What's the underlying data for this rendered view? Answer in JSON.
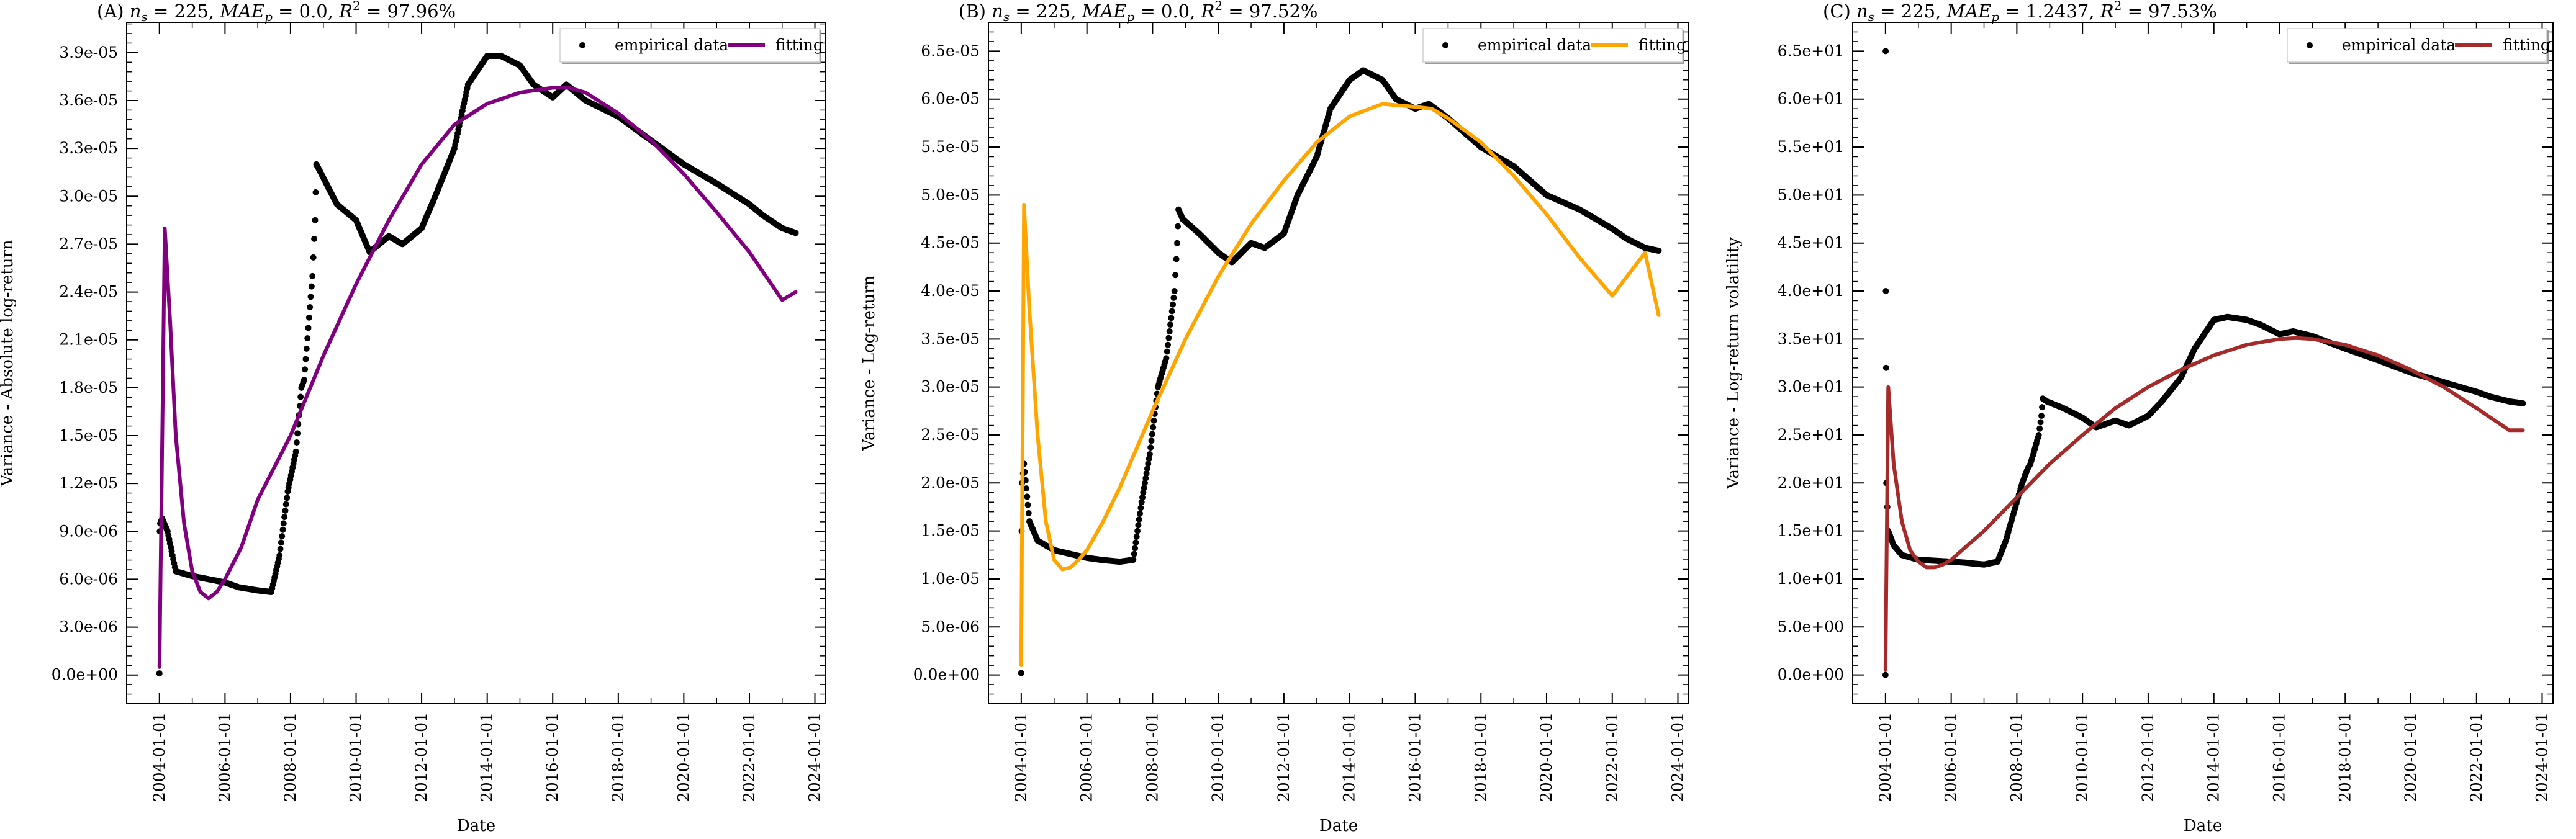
{
  "chart_data": [
    {
      "type": "scatter",
      "panel_id": "A",
      "title": "(A) n_s = 225, MAE_p = 0.0, R^2 = 97.96%",
      "title_parts": {
        "prefix": "(A)",
        "ns": "225",
        "mae": "0.0",
        "r2": "97.96%"
      },
      "xlabel": "Date",
      "ylabel": "Variance - Absolute log-return",
      "x_ticks": [
        "2004-01-01",
        "2006-01-01",
        "2008-01-01",
        "2010-01-01",
        "2012-01-01",
        "2014-01-01",
        "2016-01-01",
        "2018-01-01",
        "2020-01-01",
        "2022-01-01",
        "2024-01-01"
      ],
      "xlim": [
        "2003-01-01",
        "2024-05-01"
      ],
      "y_ticks": [
        "0.0e+00",
        "3.0e-06",
        "6.0e-06",
        "9.0e-06",
        "1.2e-05",
        "1.5e-05",
        "1.8e-05",
        "2.1e-05",
        "2.4e-05",
        "2.7e-05",
        "3.0e-05",
        "3.3e-05",
        "3.6e-05",
        "3.9e-05"
      ],
      "ylim": [
        -1.8e-06,
        4.09e-05
      ],
      "legend": {
        "placement": "top-right",
        "entries": [
          "empirical data",
          "fitting"
        ]
      },
      "fit_color": "#800080",
      "empirical_color": "#000000",
      "series": [
        {
          "name": "empirical data",
          "kind": "scatter",
          "x": [
            "2004-01-01",
            "2004-01-05",
            "2004-01-10",
            "2004-02-01",
            "2004-04-01",
            "2004-07-01",
            "2005-01-01",
            "2006-01-01",
            "2006-06-01",
            "2007-01-01",
            "2007-06-01",
            "2007-09-01",
            "2007-12-01",
            "2008-03-01",
            "2008-05-01",
            "2008-06-01",
            "2008-09-01",
            "2008-10-01",
            "2008-10-15",
            "2008-12-01",
            "2009-06-01",
            "2010-01-01",
            "2010-06-01",
            "2011-01-01",
            "2011-06-01",
            "2012-01-01",
            "2012-06-01",
            "2013-01-01",
            "2013-06-01",
            "2014-01-01",
            "2014-06-01",
            "2015-01-01",
            "2015-06-01",
            "2016-01-01",
            "2016-06-01",
            "2017-01-01",
            "2018-01-01",
            "2019-01-01",
            "2020-01-01",
            "2021-01-01",
            "2022-01-01",
            "2022-06-01",
            "2023-01-01",
            "2023-06-01"
          ],
          "y": [
            1e-07,
            9e-06,
            9.5e-06,
            9.8e-06,
            9e-06,
            6.5e-06,
            6.2e-06,
            5.8e-06,
            5.5e-06,
            5.3e-06,
            5.2e-06,
            7.5e-06,
            1.15e-05,
            1.4e-05,
            1.8e-05,
            1.85e-05,
            2.5e-05,
            2.85e-05,
            3.2e-05,
            3.15e-05,
            2.95e-05,
            2.85e-05,
            2.65e-05,
            2.75e-05,
            2.7e-05,
            2.8e-05,
            3e-05,
            3.3e-05,
            3.7e-05,
            3.88e-05,
            3.88e-05,
            3.82e-05,
            3.7e-05,
            3.62e-05,
            3.7e-05,
            3.6e-05,
            3.5e-05,
            3.35e-05,
            3.2e-05,
            3.08e-05,
            2.95e-05,
            2.88e-05,
            2.8e-05,
            2.77e-05
          ]
        },
        {
          "name": "fitting",
          "kind": "line",
          "x": [
            "2004-01-01",
            "2004-03-01",
            "2004-05-01",
            "2004-07-01",
            "2004-10-01",
            "2005-01-01",
            "2005-04-01",
            "2005-07-01",
            "2005-10-01",
            "2006-01-01",
            "2006-07-01",
            "2007-01-01",
            "2008-01-01",
            "2009-01-01",
            "2010-01-01",
            "2011-01-01",
            "2012-01-01",
            "2013-01-01",
            "2014-01-01",
            "2015-01-01",
            "2016-01-01",
            "2016-07-01",
            "2017-01-01",
            "2018-01-01",
            "2019-01-01",
            "2020-01-01",
            "2021-01-01",
            "2022-01-01",
            "2023-01-01",
            "2023-06-01"
          ],
          "y": [
            5e-07,
            2.8e-05,
            2.2e-05,
            1.5e-05,
            9.5e-06,
            6.5e-06,
            5.2e-06,
            4.8e-06,
            5.2e-06,
            6e-06,
            8e-06,
            1.1e-05,
            1.5e-05,
            2e-05,
            2.45e-05,
            2.85e-05,
            3.2e-05,
            3.45e-05,
            3.58e-05,
            3.65e-05,
            3.68e-05,
            3.68e-05,
            3.65e-05,
            3.52e-05,
            3.35e-05,
            3.14e-05,
            2.9e-05,
            2.65e-05,
            2.35e-05,
            2.4e-05
          ]
        }
      ]
    },
    {
      "type": "scatter",
      "panel_id": "B",
      "title": "(B) n_s = 225, MAE_p = 0.0, R^2 = 97.52%",
      "title_parts": {
        "prefix": "(B)",
        "ns": "225",
        "mae": "0.0",
        "r2": "97.52%"
      },
      "xlabel": "Date",
      "ylabel": "Variance - Log-return",
      "x_ticks": [
        "2004-01-01",
        "2006-01-01",
        "2008-01-01",
        "2010-01-01",
        "2012-01-01",
        "2014-01-01",
        "2016-01-01",
        "2018-01-01",
        "2020-01-01",
        "2022-01-01",
        "2024-01-01"
      ],
      "xlim": [
        "2003-01-01",
        "2024-05-01"
      ],
      "y_ticks": [
        "0.0e+00",
        "5.0e-06",
        "1.0e-05",
        "1.5e-05",
        "2.0e-05",
        "2.5e-05",
        "3.0e-05",
        "3.5e-05",
        "4.0e-05",
        "4.5e-05",
        "5.0e-05",
        "5.5e-05",
        "6.0e-05",
        "6.5e-05"
      ],
      "ylim": [
        -3e-06,
        6.8e-05
      ],
      "legend": {
        "placement": "top-right",
        "entries": [
          "empirical data",
          "fitting"
        ]
      },
      "fit_color": "#FFA500",
      "empirical_color": "#000000",
      "series": [
        {
          "name": "empirical data",
          "kind": "scatter",
          "x": [
            "2004-01-01",
            "2004-01-05",
            "2004-01-10",
            "2004-02-01",
            "2004-04-01",
            "2004-07-01",
            "2005-01-01",
            "2006-01-01",
            "2006-06-01",
            "2007-01-01",
            "2007-06-01",
            "2007-09-01",
            "2007-12-01",
            "2008-03-01",
            "2008-05-01",
            "2008-06-01",
            "2008-09-01",
            "2008-10-01",
            "2008-10-15",
            "2008-12-01",
            "2009-06-01",
            "2010-01-01",
            "2010-06-01",
            "2011-01-01",
            "2011-06-01",
            "2012-01-01",
            "2012-06-01",
            "2013-01-01",
            "2013-06-01",
            "2014-01-01",
            "2014-06-01",
            "2015-01-01",
            "2015-06-01",
            "2016-01-01",
            "2016-06-01",
            "2017-01-01",
            "2018-01-01",
            "2019-01-01",
            "2020-01-01",
            "2021-01-01",
            "2022-01-01",
            "2022-06-01",
            "2023-01-01",
            "2023-06-01"
          ],
          "y": [
            2e-07,
            1.5e-05,
            2e-05,
            2.2e-05,
            1.6e-05,
            1.4e-05,
            1.3e-05,
            1.22e-05,
            1.2e-05,
            1.18e-05,
            1.2e-05,
            1.8e-05,
            2.3e-05,
            3e-05,
            3.2e-05,
            3.3e-05,
            4e-05,
            4.5e-05,
            4.85e-05,
            4.75e-05,
            4.6e-05,
            4.4e-05,
            4.3e-05,
            4.5e-05,
            4.45e-05,
            4.6e-05,
            5e-05,
            5.4e-05,
            5.9e-05,
            6.2e-05,
            6.3e-05,
            6.2e-05,
            6e-05,
            5.9e-05,
            5.95e-05,
            5.8e-05,
            5.5e-05,
            5.3e-05,
            5e-05,
            4.85e-05,
            4.65e-05,
            4.55e-05,
            4.45e-05,
            4.42e-05
          ]
        },
        {
          "name": "fitting",
          "kind": "line",
          "x": [
            "2004-01-01",
            "2004-02-01",
            "2004-04-01",
            "2004-07-01",
            "2004-10-01",
            "2005-01-01",
            "2005-04-01",
            "2005-07-01",
            "2005-10-01",
            "2006-01-01",
            "2006-07-01",
            "2007-01-01",
            "2008-01-01",
            "2009-01-01",
            "2010-01-01",
            "2011-01-01",
            "2012-01-01",
            "2013-01-01",
            "2014-01-01",
            "2015-01-01",
            "2016-01-01",
            "2016-07-01",
            "2017-01-01",
            "2018-01-01",
            "2019-01-01",
            "2020-01-01",
            "2021-01-01",
            "2022-01-01",
            "2023-01-01",
            "2023-06-01"
          ],
          "y": [
            1e-06,
            4.9e-05,
            3.8e-05,
            2.5e-05,
            1.6e-05,
            1.2e-05,
            1.1e-05,
            1.12e-05,
            1.2e-05,
            1.3e-05,
            1.6e-05,
            1.95e-05,
            2.75e-05,
            3.5e-05,
            4.15e-05,
            4.7e-05,
            5.15e-05,
            5.55e-05,
            5.82e-05,
            5.95e-05,
            5.92e-05,
            5.9e-05,
            5.8e-05,
            5.55e-05,
            5.2e-05,
            4.8e-05,
            4.35e-05,
            3.95e-05,
            4.4e-05,
            3.75e-05
          ]
        }
      ]
    },
    {
      "type": "scatter",
      "panel_id": "C",
      "title": "(C) n_s = 225, MAE_p = 1.2437, R^2 = 97.53%",
      "title_parts": {
        "prefix": "(C)",
        "ns": "225",
        "mae": "1.2437",
        "r2": "97.53%"
      },
      "xlabel": "Date",
      "ylabel": "Variance - Log-return volatility",
      "x_ticks": [
        "2004-01-01",
        "2006-01-01",
        "2008-01-01",
        "2010-01-01",
        "2012-01-01",
        "2014-01-01",
        "2016-01-01",
        "2018-01-01",
        "2020-01-01",
        "2022-01-01",
        "2024-01-01"
      ],
      "xlim": [
        "2003-01-01",
        "2024-05-01"
      ],
      "y_ticks": [
        "0.0e+00",
        "5.0e+00",
        "1.0e+01",
        "1.5e+01",
        "2.0e+01",
        "2.5e+01",
        "3.0e+01",
        "3.5e+01",
        "4.0e+01",
        "4.5e+01",
        "5.0e+01",
        "5.5e+01",
        "6.0e+01",
        "6.5e+01"
      ],
      "ylim": [
        -3.0,
        68.0
      ],
      "legend": {
        "placement": "top-right",
        "entries": [
          "empirical data",
          "fitting"
        ]
      },
      "fit_color": "#A52A2A",
      "empirical_color": "#000000",
      "series": [
        {
          "name": "empirical data",
          "kind": "scatter",
          "x": [
            "2004-01-01",
            "2004-01-03",
            "2004-01-05",
            "2004-01-08",
            "2004-01-10",
            "2004-02-01",
            "2004-04-01",
            "2004-07-01",
            "2005-01-01",
            "2006-01-01",
            "2006-06-01",
            "2007-01-01",
            "2007-06-01",
            "2007-09-01",
            "2007-12-01",
            "2008-03-01",
            "2008-05-01",
            "2008-06-01",
            "2008-09-01",
            "2008-10-01",
            "2008-10-15",
            "2008-12-01",
            "2009-06-01",
            "2010-01-01",
            "2010-06-01",
            "2011-01-01",
            "2011-06-01",
            "2012-01-01",
            "2012-06-01",
            "2013-01-01",
            "2013-06-01",
            "2014-01-01",
            "2014-06-01",
            "2015-01-01",
            "2015-06-01",
            "2016-01-01",
            "2016-06-01",
            "2017-01-01",
            "2018-01-01",
            "2019-01-01",
            "2020-01-01",
            "2021-01-01",
            "2022-01-01",
            "2022-06-01",
            "2023-01-01",
            "2023-06-01"
          ],
          "y": [
            0.0,
            65.0,
            40.0,
            32.0,
            20.0,
            15.0,
            13.5,
            12.5,
            12.0,
            11.8,
            11.7,
            11.5,
            11.8,
            14.0,
            17.0,
            20.0,
            21.5,
            22.0,
            25.0,
            27.0,
            28.8,
            28.5,
            27.8,
            26.8,
            25.8,
            26.5,
            26.0,
            27.0,
            28.5,
            31.0,
            34.0,
            37.0,
            37.3,
            37.0,
            36.5,
            35.5,
            35.8,
            35.3,
            34.0,
            32.8,
            31.5,
            30.5,
            29.5,
            29.0,
            28.5,
            28.3
          ]
        },
        {
          "name": "fitting",
          "kind": "line",
          "x": [
            "2004-01-01",
            "2004-02-01",
            "2004-04-01",
            "2004-07-01",
            "2004-10-01",
            "2005-01-01",
            "2005-04-01",
            "2005-07-01",
            "2005-10-01",
            "2006-01-01",
            "2006-07-01",
            "2007-01-01",
            "2008-01-01",
            "2009-01-01",
            "2010-01-01",
            "2011-01-01",
            "2012-01-01",
            "2013-01-01",
            "2014-01-01",
            "2015-01-01",
            "2016-01-01",
            "2016-07-01",
            "2017-01-01",
            "2018-01-01",
            "2019-01-01",
            "2020-01-01",
            "2021-01-01",
            "2022-01-01",
            "2023-01-01",
            "2023-06-01"
          ],
          "y": [
            0.5,
            30.0,
            22.0,
            16.0,
            13.0,
            11.8,
            11.2,
            11.2,
            11.5,
            12.0,
            13.5,
            15.0,
            18.5,
            22.0,
            25.0,
            27.8,
            30.0,
            31.8,
            33.3,
            34.4,
            35.0,
            35.1,
            35.0,
            34.4,
            33.3,
            31.8,
            30.0,
            27.8,
            25.5,
            25.5
          ]
        }
      ]
    }
  ]
}
